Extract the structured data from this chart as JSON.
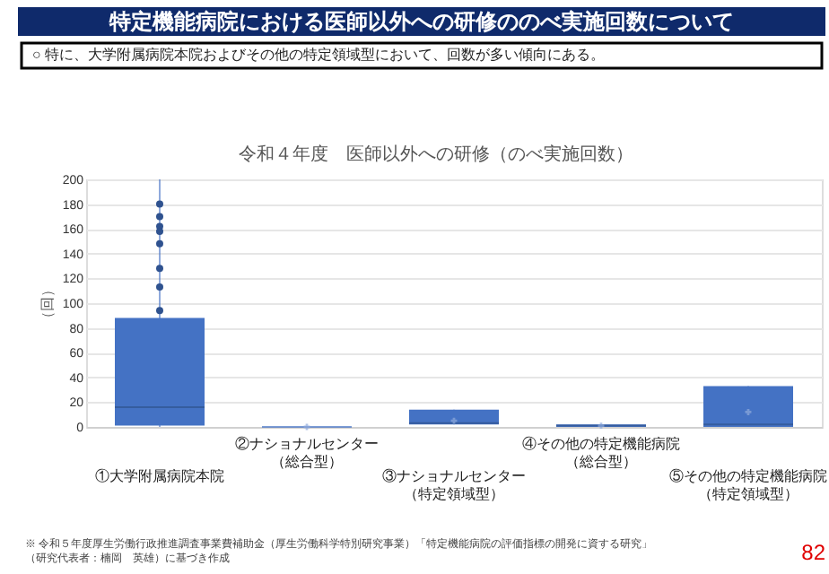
{
  "chart_data": {
    "type": "box",
    "title": "特定機能病院における医師以外への研修ののべ実施回数について",
    "subtitle": "○ 特に、大学附属病院本院およびその他の特定領域型において、回数が多い傾向にある。",
    "annotations": [
      "令和４年度　医師以外への研修（のべ実施回数）",
      "※ 令和５年度厚生労働行政推進調査事業費補助金（厚生労働科学特別研究事業）「特定機能病院の評価指標の開発に資する研究」（研究代表者：楠岡　英雄）に基づき作成",
      "82"
    ],
    "ylabel": "（回）",
    "categories": [
      "①大学附属病院本院",
      "②ナショナルセンター（総合型）",
      "③ナショナルセンター（特定領域型）",
      "④その他の特定機能病院（総合型）",
      "⑤その他の特定機能病院（特定領域型）"
    ],
    "boxes": [
      {
        "low": 0,
        "q1": 1,
        "median": 16,
        "q3": 88,
        "high": 200,
        "outliers": [
          180,
          170,
          162,
          158,
          148,
          128,
          113,
          94
        ]
      },
      {
        "low": 0,
        "q1": 0,
        "median": 0,
        "q3": 0,
        "high": 0,
        "mean": 0
      },
      {
        "low": 2,
        "q1": 2,
        "median": 3,
        "q3": 14,
        "high": 14,
        "mean": 5
      },
      {
        "low": 0,
        "q1": 0,
        "median": 1,
        "q3": 2,
        "high": 2,
        "mean": 1
      },
      {
        "low": 0,
        "q1": 0,
        "median": 2,
        "q3": 33,
        "high": 33,
        "mean": 12
      }
    ],
    "color": "#4472c4",
    "ylim": [
      0,
      200
    ],
    "yticks": [
      0,
      20,
      40,
      60,
      80,
      100,
      120,
      140,
      160,
      180,
      200
    ],
    "grid": "y"
  }
}
